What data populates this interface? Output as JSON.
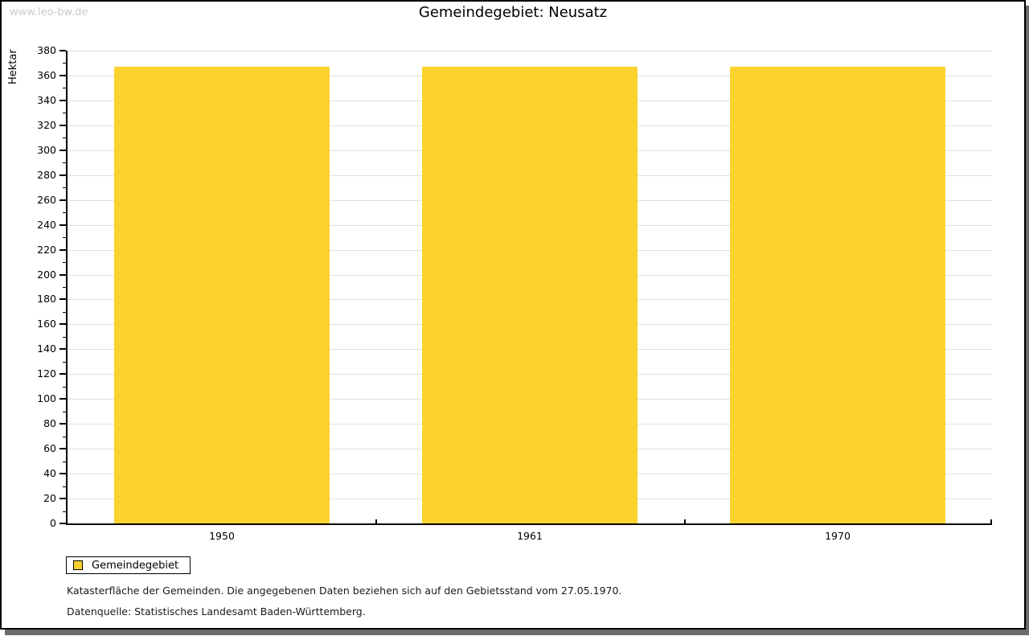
{
  "watermark": "www.leo-bw.de",
  "title": "Gemeindegebiet: Neusatz",
  "chart_data": {
    "type": "bar",
    "title": "Gemeindegebiet: Neusatz",
    "categories": [
      "1950",
      "1961",
      "1970"
    ],
    "series": [
      {
        "name": "Gemeindegebiet",
        "values": [
          367,
          367,
          367
        ]
      }
    ],
    "xlabel": "",
    "ylabel": "Hektar",
    "ylim": [
      0,
      380
    ],
    "ytick_step": 20,
    "ytick_minor_step": 10,
    "grid": true,
    "legend_position": "bottom-left"
  },
  "legend": {
    "items": [
      {
        "label": "Gemeindegebiet",
        "color": "#FCD32E"
      }
    ]
  },
  "footnotes": [
    "Katasterfläche der Gemeinden. Die angegebenen Daten beziehen sich auf den Gebietsstand vom 27.05.1970.",
    "Datenquelle: Statistisches Landesamt Baden-Württemberg."
  ],
  "colors": {
    "bar": "#FCD32E",
    "grid": "#E0E0E0",
    "axis": "#000000",
    "shadow": "#6B6B6B",
    "watermark": "#C9C9C9"
  }
}
